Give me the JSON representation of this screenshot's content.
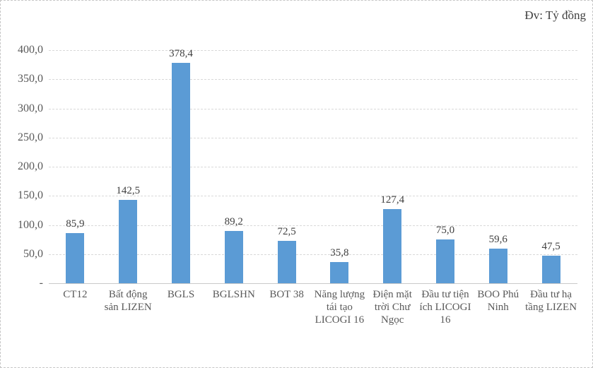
{
  "chart_data": {
    "type": "bar",
    "title": "Đv: Tỷ đồng",
    "categories": [
      "CT12",
      "Bất động sản LIZEN",
      "BGLS",
      "BGLSHN",
      "BOT 38",
      "Năng lượng tái tạo LICOGI 16",
      "Điện mặt trời Chư Ngọc",
      "Đầu tư tiện ích LICOGI 16",
      "BOO Phú Ninh",
      "Đầu tư hạ tầng LIZEN"
    ],
    "values": [
      85.9,
      142.5,
      378.4,
      89.2,
      72.5,
      35.8,
      127.4,
      75.0,
      59.6,
      47.5
    ],
    "value_labels": [
      "85,9",
      "142,5",
      "378,4",
      "89,2",
      "72,5",
      "35,8",
      "127,4",
      "75,0",
      "59,6",
      "47,5"
    ],
    "xlabel": "",
    "ylabel": "",
    "ylim": [
      0,
      400
    ],
    "ytick_values": [
      400,
      350,
      300,
      250,
      200,
      150,
      100,
      50,
      0
    ],
    "ytick_labels": [
      "400,0",
      "350,0",
      "300,0",
      "250,0",
      "200,0",
      "150,0",
      "100,0",
      "50,0",
      "-"
    ],
    "grid": true,
    "legend": false,
    "colors": {
      "bar": "#5B9BD5",
      "gridline": "#d9d9d9",
      "axis_line": "#c9c9c9",
      "axis_text": "#595959",
      "data_label_text": "#404040"
    }
  }
}
